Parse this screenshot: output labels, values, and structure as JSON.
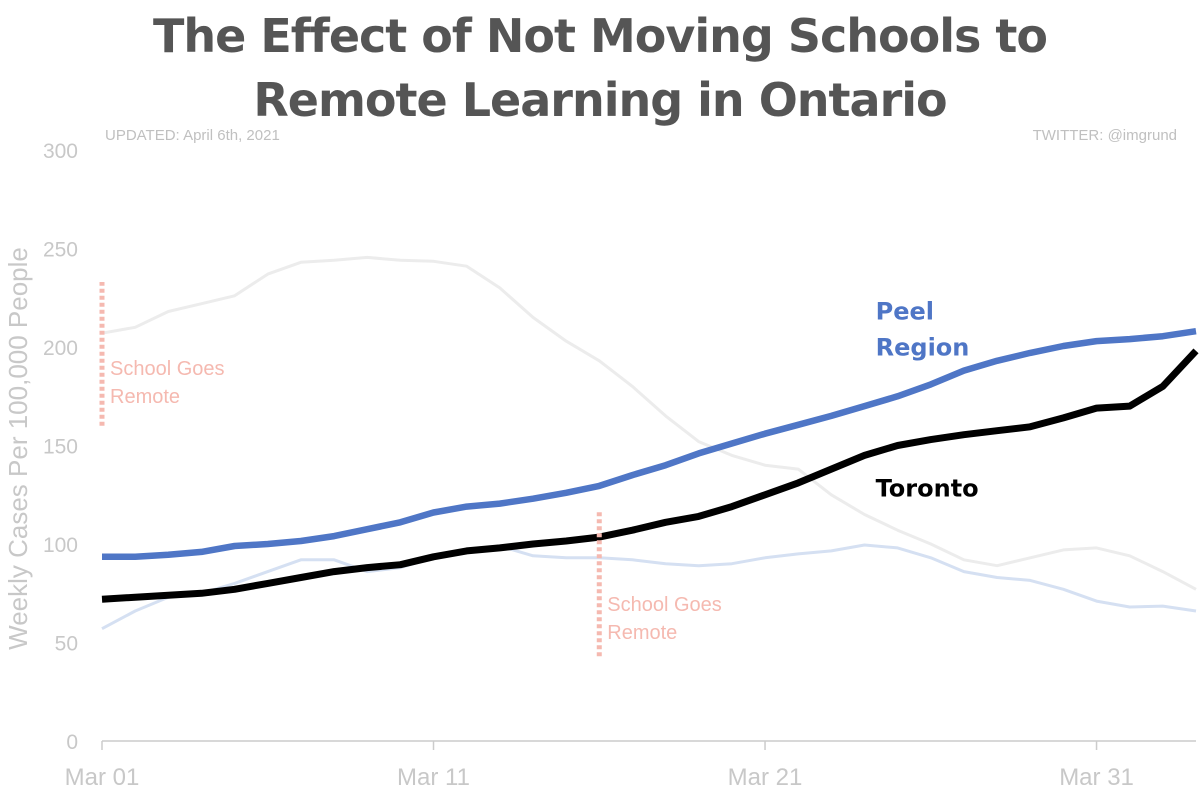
{
  "title_lines": [
    "The Effect of Not Moving Schools to",
    "Remote Learning in Ontario"
  ],
  "updated_text": "UPDATED: April 6th, 2021",
  "twitter_text": "TWITTER: @imgrund",
  "colors": {
    "peel": "#4f76c6",
    "toronto": "#000000",
    "peel_background": "#d5e0f2",
    "toronto_background": "#ececec",
    "annotation": "#f5b9b0",
    "axis_text": "#c8c8c8",
    "title": "#555555"
  },
  "chart_data": {
    "type": "line",
    "title": "The Effect of Not Moving Schools to Remote Learning in Ontario",
    "xlabel": "",
    "ylabel": "Weekly Cases Per 100,000 People",
    "xlim": [
      "2021-03-01",
      "2021-04-03"
    ],
    "ylim": [
      0,
      300
    ],
    "yticks": [
      0,
      50,
      100,
      150,
      200,
      250,
      300
    ],
    "xticks": [
      {
        "date": "2021-03-01",
        "label": "Mar 01"
      },
      {
        "date": "2021-03-11",
        "label": "Mar 11"
      },
      {
        "date": "2021-03-21",
        "label": "Mar 21"
      },
      {
        "date": "2021-03-31",
        "label": "Mar 31"
      }
    ],
    "x": [
      "2021-03-01",
      "2021-03-02",
      "2021-03-03",
      "2021-03-04",
      "2021-03-05",
      "2021-03-06",
      "2021-03-07",
      "2021-03-08",
      "2021-03-09",
      "2021-03-10",
      "2021-03-11",
      "2021-03-12",
      "2021-03-13",
      "2021-03-14",
      "2021-03-15",
      "2021-03-16",
      "2021-03-17",
      "2021-03-18",
      "2021-03-19",
      "2021-03-20",
      "2021-03-21",
      "2021-03-22",
      "2021-03-23",
      "2021-03-24",
      "2021-03-25",
      "2021-03-26",
      "2021-03-27",
      "2021-03-28",
      "2021-03-29",
      "2021-03-30",
      "2021-03-31",
      "2021-04-01",
      "2021-04-02",
      "2021-04-03"
    ],
    "series": [
      {
        "name": "Peel Region",
        "label_lines": [
          "Peel",
          "Region"
        ],
        "color_key": "peel",
        "values": [
          93.5,
          93.5,
          94.5,
          96,
          99,
          100,
          101.5,
          104,
          107.5,
          111,
          116,
          119,
          120.5,
          123,
          126,
          129.5,
          135,
          140,
          146,
          151,
          156,
          160.5,
          165,
          170,
          175,
          181,
          188,
          193,
          197,
          200.5,
          203,
          204,
          205.5,
          208
        ]
      },
      {
        "name": "Toronto",
        "label_lines": [
          "Toronto"
        ],
        "color_key": "toronto",
        "values": [
          72,
          73,
          74,
          75,
          77,
          80,
          83,
          86,
          88,
          89.5,
          93.5,
          96.5,
          98,
          100,
          101.5,
          103.5,
          107,
          111,
          114,
          119,
          125,
          131,
          138,
          145,
          150,
          153,
          155.5,
          157.5,
          159.5,
          164,
          169,
          170,
          180,
          198
        ]
      },
      {
        "name": "",
        "role": "background",
        "color_key": "peel_background",
        "values": [
          57,
          66,
          73,
          75,
          80,
          86,
          92,
          92,
          86,
          88,
          93,
          97,
          99,
          94,
          93,
          93,
          92,
          90,
          89,
          90,
          93,
          95,
          96.5,
          99.5,
          98,
          93,
          86,
          83,
          81.5,
          77,
          71,
          68,
          68.5,
          66
        ]
      },
      {
        "name": "",
        "role": "background",
        "color_key": "toronto_background",
        "values": [
          207,
          210,
          218,
          222,
          226,
          237,
          243,
          244,
          245.5,
          244,
          243.5,
          241,
          230,
          215,
          203,
          193,
          180,
          165,
          152,
          145,
          140,
          138,
          125,
          115,
          107,
          100,
          92,
          89,
          93,
          97,
          98,
          94,
          86,
          77
        ]
      }
    ],
    "annotations": [
      {
        "date": "2021-03-01",
        "y_range": [
          160,
          233
        ],
        "text_lines": [
          "School Goes",
          "Remote"
        ]
      },
      {
        "date": "2021-03-16",
        "y_range": [
          43,
          117
        ],
        "text_lines": [
          "School Goes",
          "Remote"
        ]
      }
    ],
    "grid": false,
    "legend": "inline labels"
  }
}
